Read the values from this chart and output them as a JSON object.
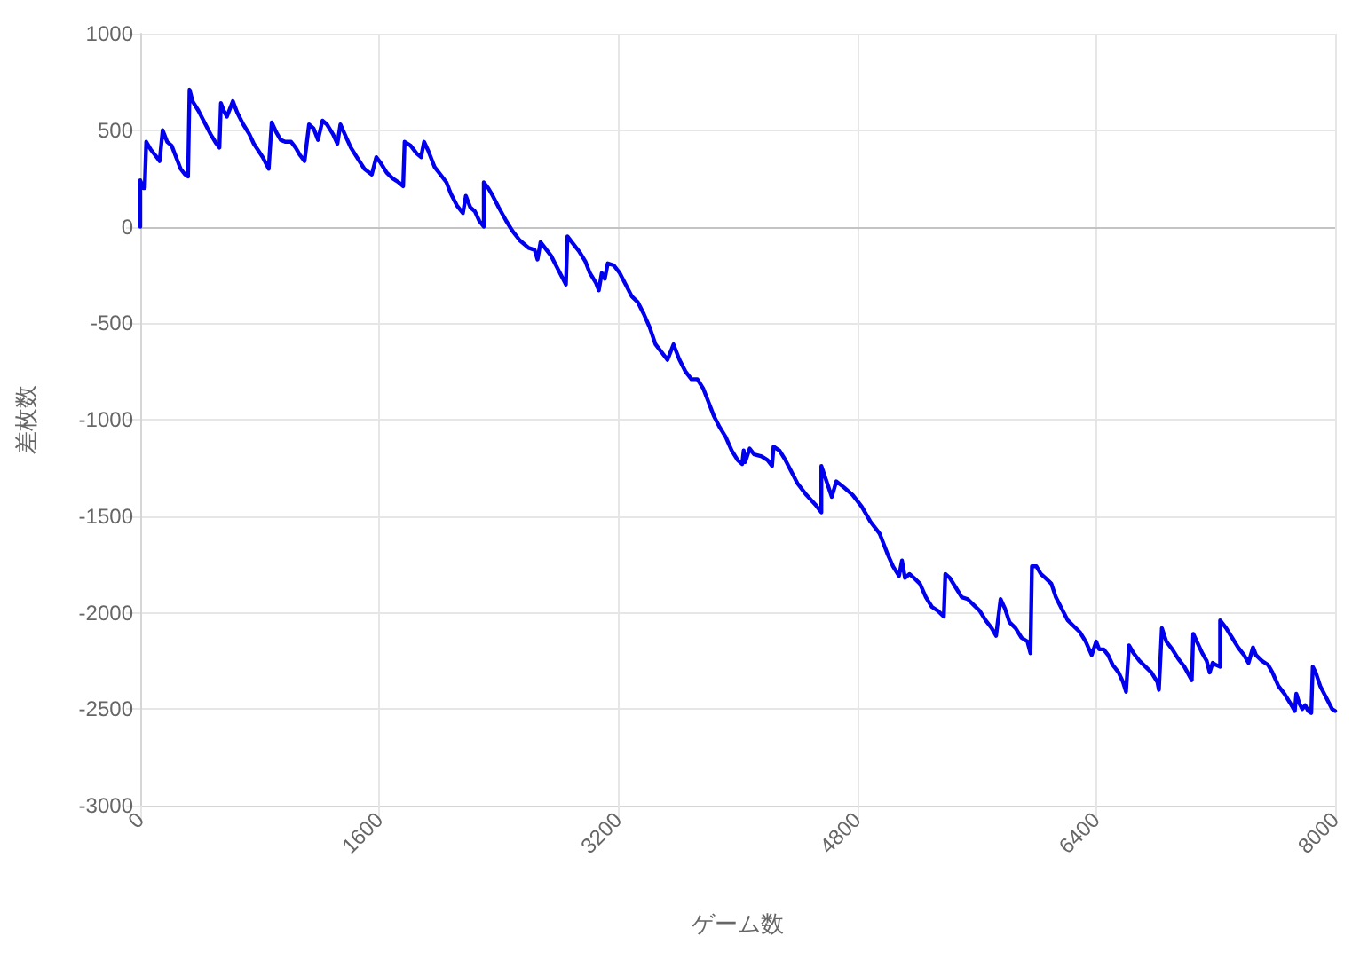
{
  "chart_data": {
    "type": "line",
    "xlabel": "ゲーム数",
    "ylabel": "差枚数",
    "x": [
      0,
      0,
      20,
      30,
      40,
      70,
      110,
      130,
      150,
      180,
      210,
      240,
      270,
      300,
      320,
      330,
      350,
      390,
      430,
      470,
      510,
      530,
      540,
      560,
      580,
      620,
      650,
      690,
      730,
      760,
      820,
      860,
      880,
      910,
      940,
      970,
      1010,
      1040,
      1070,
      1100,
      1130,
      1160,
      1190,
      1220,
      1250,
      1290,
      1320,
      1340,
      1380,
      1410,
      1450,
      1500,
      1550,
      1580,
      1610,
      1650,
      1690,
      1730,
      1760,
      1770,
      1810,
      1850,
      1880,
      1900,
      1930,
      1970,
      2010,
      2050,
      2080,
      2120,
      2160,
      2180,
      2210,
      2240,
      2270,
      2300,
      2300,
      2330,
      2360,
      2400,
      2450,
      2490,
      2540,
      2600,
      2640,
      2660,
      2680,
      2720,
      2750,
      2790,
      2830,
      2850,
      2860,
      2900,
      2940,
      2980,
      3010,
      3050,
      3070,
      3090,
      3110,
      3130,
      3170,
      3210,
      3250,
      3290,
      3330,
      3370,
      3410,
      3450,
      3490,
      3530,
      3570,
      3610,
      3650,
      3690,
      3730,
      3770,
      3800,
      3840,
      3880,
      3920,
      3960,
      4000,
      4030,
      4040,
      4050,
      4080,
      4110,
      4160,
      4200,
      4230,
      4240,
      4280,
      4320,
      4360,
      4400,
      4460,
      4520,
      4560,
      4560,
      4630,
      4660,
      4710,
      4770,
      4830,
      4890,
      4950,
      5000,
      5040,
      5080,
      5100,
      5120,
      5150,
      5180,
      5220,
      5260,
      5300,
      5340,
      5380,
      5390,
      5420,
      5460,
      5500,
      5540,
      5580,
      5620,
      5660,
      5700,
      5730,
      5760,
      5790,
      5820,
      5860,
      5900,
      5940,
      5960,
      5970,
      6000,
      6030,
      6060,
      6100,
      6130,
      6170,
      6210,
      6250,
      6290,
      6330,
      6370,
      6400,
      6420,
      6450,
      6480,
      6510,
      6550,
      6580,
      6600,
      6620,
      6650,
      6690,
      6730,
      6770,
      6810,
      6820,
      6840,
      6870,
      6910,
      6950,
      6990,
      7040,
      7050,
      7080,
      7110,
      7140,
      7160,
      7180,
      7200,
      7230,
      7230,
      7270,
      7310,
      7350,
      7390,
      7420,
      7450,
      7470,
      7510,
      7550,
      7580,
      7620,
      7660,
      7700,
      7730,
      7740,
      7760,
      7780,
      7800,
      7820,
      7840,
      7850,
      7870,
      7900,
      7940,
      7980,
      8000
    ],
    "series": [
      {
        "color": "#0000ee",
        "values": [
          0,
          240,
          200,
          200,
          440,
          400,
          360,
          340,
          500,
          440,
          420,
          360,
          300,
          270,
          260,
          710,
          650,
          600,
          540,
          480,
          430,
          410,
          640,
          600,
          570,
          650,
          590,
          530,
          480,
          430,
          360,
          300,
          540,
          490,
          450,
          440,
          440,
          410,
          370,
          340,
          530,
          510,
          450,
          550,
          530,
          480,
          430,
          530,
          460,
          410,
          360,
          300,
          270,
          360,
          330,
          280,
          250,
          230,
          210,
          440,
          420,
          380,
          360,
          440,
          390,
          310,
          270,
          230,
          170,
          110,
          70,
          160,
          100,
          80,
          30,
          0,
          230,
          200,
          160,
          100,
          30,
          -20,
          -70,
          -110,
          -120,
          -170,
          -80,
          -120,
          -150,
          -210,
          -270,
          -300,
          -50,
          -90,
          -130,
          -180,
          -240,
          -290,
          -330,
          -240,
          -270,
          -190,
          -200,
          -240,
          -300,
          -360,
          -390,
          -450,
          -520,
          -610,
          -650,
          -690,
          -610,
          -690,
          -750,
          -790,
          -790,
          -840,
          -900,
          -980,
          -1040,
          -1090,
          -1160,
          -1210,
          -1230,
          -1160,
          -1220,
          -1150,
          -1180,
          -1190,
          -1210,
          -1240,
          -1140,
          -1160,
          -1210,
          -1270,
          -1330,
          -1390,
          -1440,
          -1480,
          -1240,
          -1400,
          -1320,
          -1350,
          -1390,
          -1450,
          -1530,
          -1590,
          -1690,
          -1760,
          -1810,
          -1730,
          -1820,
          -1800,
          -1820,
          -1850,
          -1920,
          -1970,
          -1990,
          -2020,
          -1800,
          -1820,
          -1870,
          -1920,
          -1930,
          -1960,
          -1990,
          -2040,
          -2080,
          -2120,
          -1930,
          -1980,
          -2050,
          -2080,
          -2130,
          -2150,
          -2210,
          -1760,
          -1760,
          -1800,
          -1820,
          -1850,
          -1920,
          -1980,
          -2040,
          -2070,
          -2100,
          -2150,
          -2220,
          -2150,
          -2190,
          -2190,
          -2220,
          -2270,
          -2310,
          -2360,
          -2410,
          -2170,
          -2210,
          -2250,
          -2280,
          -2310,
          -2360,
          -2400,
          -2080,
          -2150,
          -2190,
          -2240,
          -2280,
          -2350,
          -2110,
          -2160,
          -2210,
          -2250,
          -2310,
          -2260,
          -2270,
          -2280,
          -2040,
          -2080,
          -2130,
          -2180,
          -2220,
          -2260,
          -2180,
          -2220,
          -2250,
          -2270,
          -2310,
          -2380,
          -2420,
          -2470,
          -2510,
          -2420,
          -2470,
          -2500,
          -2480,
          -2510,
          -2520,
          -2280,
          -2310,
          -2380,
          -2440,
          -2500,
          -2510
        ]
      }
    ],
    "xlim": [
      0,
      8000
    ],
    "xticks": [
      0,
      1600,
      3200,
      4800,
      6400,
      8000
    ],
    "ylim": [
      -3000,
      1000
    ],
    "yticks": [
      -3000,
      -2500,
      -2000,
      -1500,
      -1000,
      -500,
      0,
      500,
      1000
    ],
    "grid": true,
    "marker": "none",
    "line_style": "solid",
    "ref_lines": [
      {
        "axis": "y",
        "value": 0,
        "color": "#c4c4c4"
      }
    ]
  }
}
